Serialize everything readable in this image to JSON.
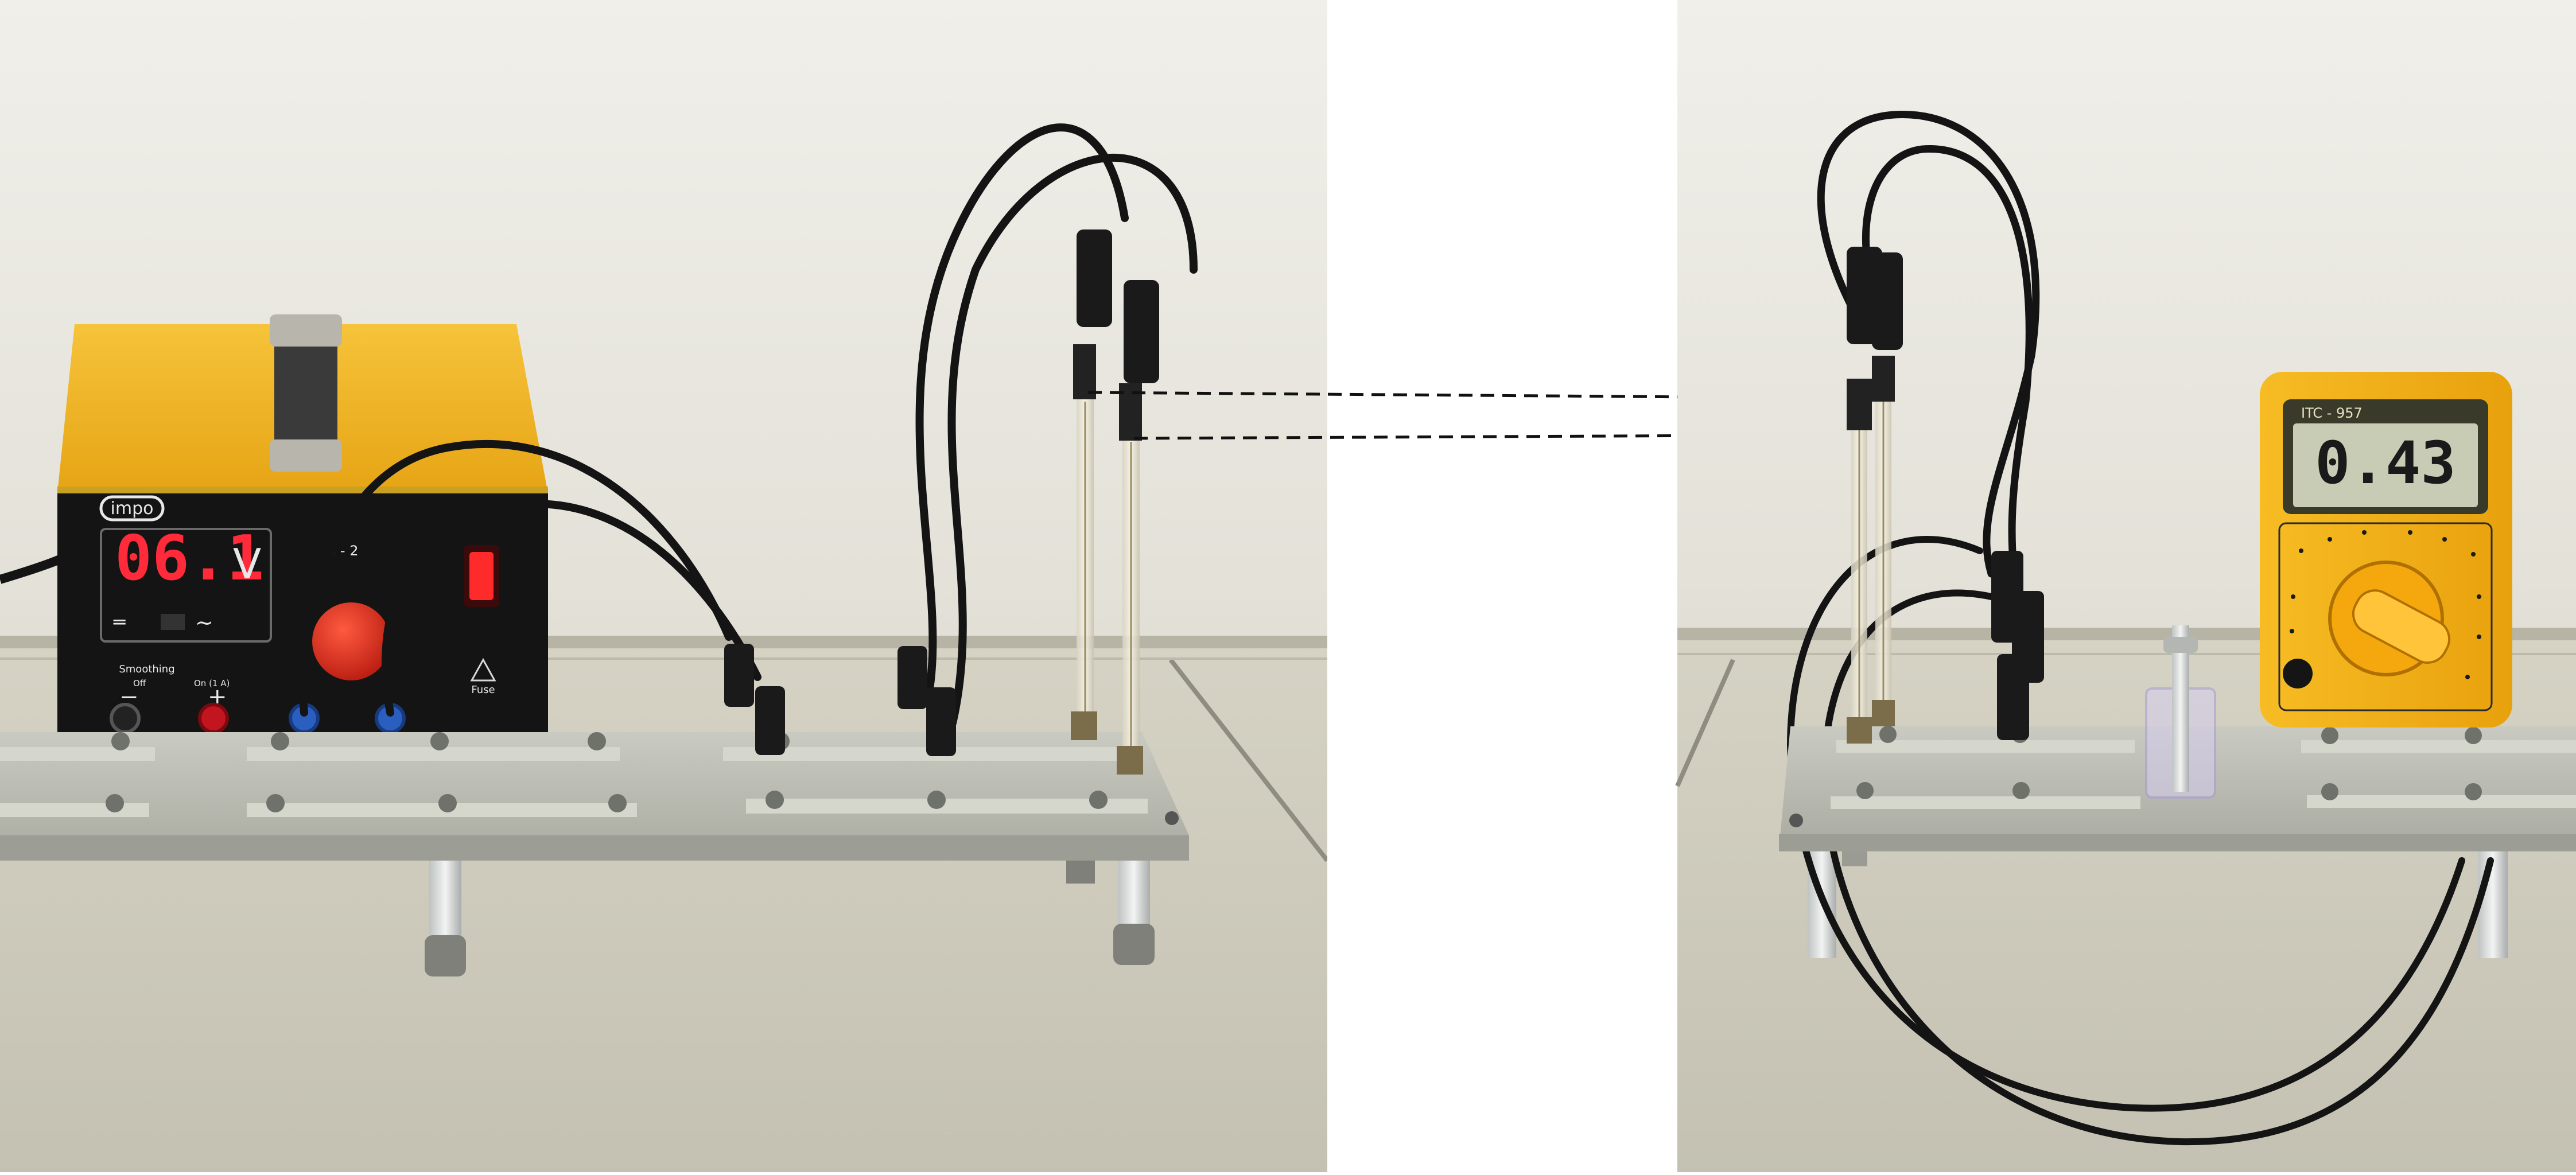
{
  "power_supply": {
    "brand": "impo",
    "voltage_display": "06.1",
    "unit": "V",
    "range_label": "0 - 2",
    "smoothing_label": "Smoothing",
    "smoothing_off": "Off",
    "smoothing_on": "On (1 A)",
    "fuse_label": "Fuse",
    "minus_sign": "−",
    "plus_sign": "+"
  },
  "multimeter": {
    "model": "ITC - 957",
    "reading": "0.43"
  },
  "colors": {
    "wall": "#ecebe4",
    "table": "#cfcdc0",
    "base_plate": "#b9bab0",
    "supply_body": "#f2b322",
    "led_red": "#ff2a3a",
    "meter_body": "#f5b015",
    "lcd": "#c8ccb4",
    "cable": "#141414"
  }
}
